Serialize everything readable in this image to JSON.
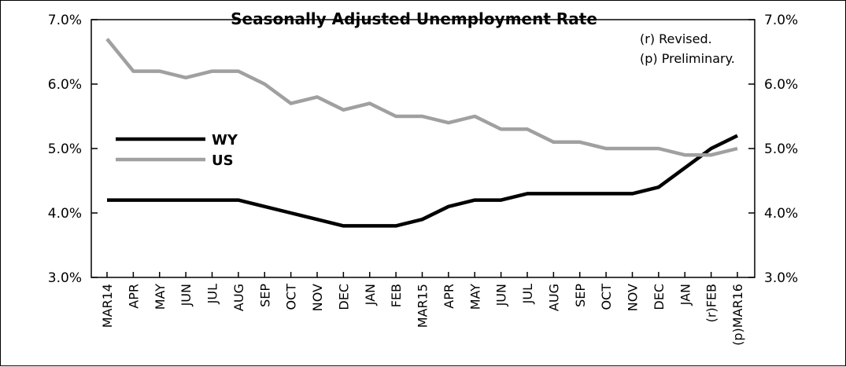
{
  "chart_data": {
    "type": "line",
    "title": "Seasonally Adjusted Unemployment Rate",
    "notes": [
      "(r) Revised.",
      "(p) Preliminary."
    ],
    "categories": [
      "MAR14",
      "APR",
      "MAY",
      "JUN",
      "JUL",
      "AUG",
      "SEP",
      "OCT",
      "NOV",
      "DEC",
      "JAN",
      "FEB",
      "MAR15",
      "APR",
      "MAY",
      "JUN",
      "JUL",
      "AUG",
      "SEP",
      "OCT",
      "NOV",
      "DEC",
      "JAN",
      "(r)FEB",
      "(p)MAR16"
    ],
    "y_ticks": [
      "3.0%",
      "4.0%",
      "5.0%",
      "6.0%",
      "7.0%"
    ],
    "y_tick_values": [
      3.0,
      4.0,
      5.0,
      6.0,
      7.0
    ],
    "ylim": [
      3.0,
      7.0
    ],
    "y_axis_both_sides": true,
    "grid": false,
    "legend_position": "left",
    "series": [
      {
        "name": "WY",
        "color": "#000000",
        "values": [
          4.2,
          4.2,
          4.2,
          4.2,
          4.2,
          4.2,
          4.1,
          4.0,
          3.9,
          3.8,
          3.8,
          3.8,
          3.9,
          4.1,
          4.2,
          4.2,
          4.3,
          4.3,
          4.3,
          4.3,
          4.3,
          4.4,
          4.7,
          5.0,
          5.2
        ]
      },
      {
        "name": "US",
        "color": "#a0a0a0",
        "values": [
          6.7,
          6.2,
          6.2,
          6.1,
          6.2,
          6.2,
          6.0,
          5.7,
          5.8,
          5.6,
          5.7,
          5.5,
          5.5,
          5.4,
          5.5,
          5.3,
          5.3,
          5.1,
          5.1,
          5.0,
          5.0,
          5.0,
          4.9,
          4.9,
          5.0
        ]
      }
    ]
  }
}
